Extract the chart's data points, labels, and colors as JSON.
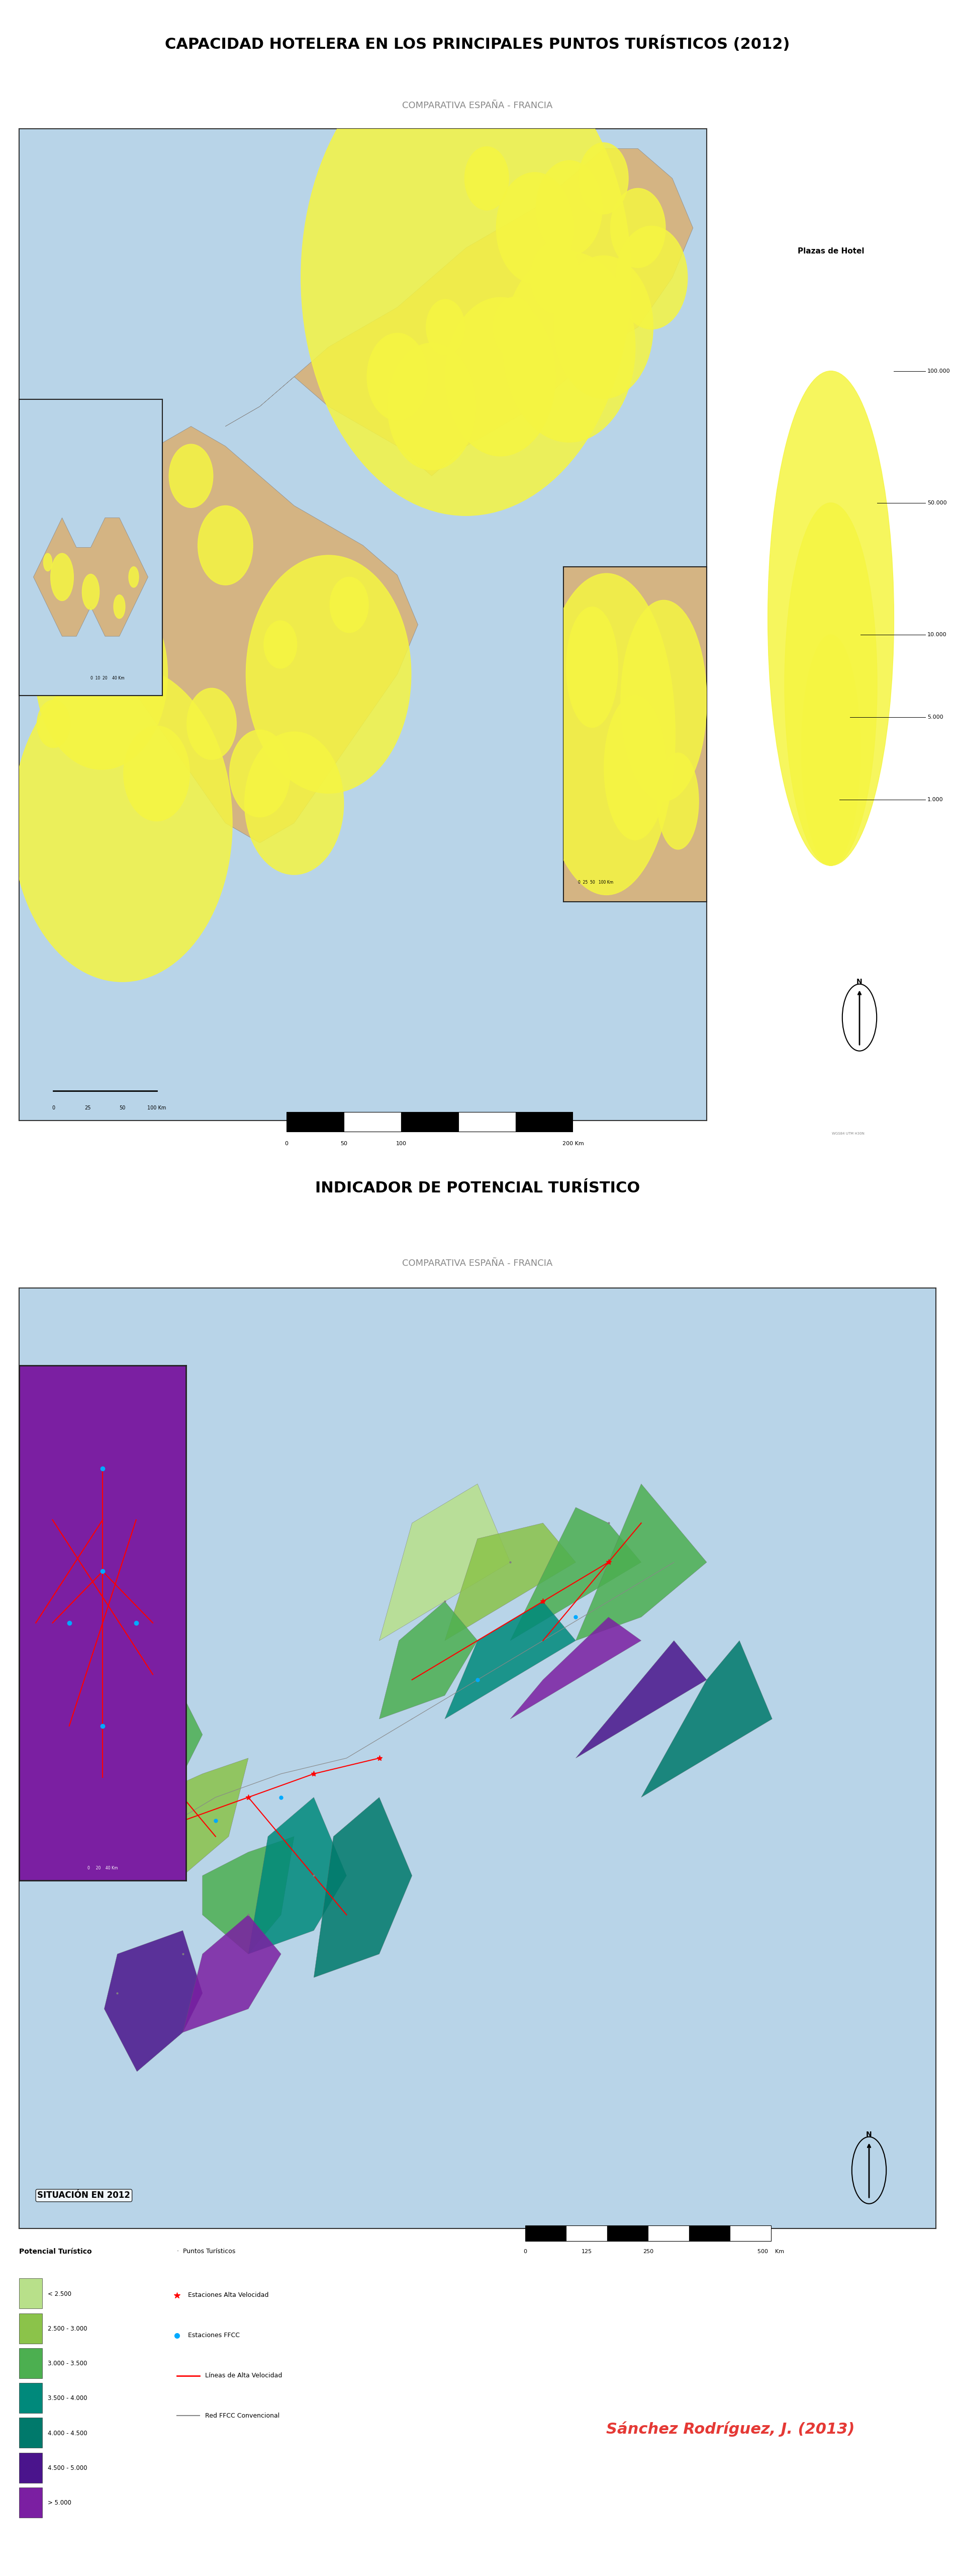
{
  "title1": "CAPACIDAD HOTELERA EN LOS PRINCIPALES PUNTOS TURÍSTICOS (2012)",
  "subtitle1": "COMPARATIVA ESPAÑA - FRANCIA",
  "title2": "INDICADOR DE POTENCIAL TURÍSTICO",
  "subtitle2": "COMPARATIVA ESPAÑA - FRANCIA",
  "situation_label": "SITUACIÓN EN 2012",
  "author": "Sánchez Rodríguez, J. (2013)",
  "bg_color": "#ffffff",
  "map1_bg": "#c8dce8",
  "map1_land": "#d4b483",
  "map2_bg": "#c8dce8",
  "map2_land": "#d4b483",
  "legend_items": [
    {
      "color": "#b8e08a",
      "label": "< 2.500"
    },
    {
      "color": "#8bc34a",
      "label": "2.500 - 3.000"
    },
    {
      "color": "#4caf50",
      "label": "3.000 - 3.500"
    },
    {
      "color": "#00897b",
      "label": "3.500 - 4.000"
    },
    {
      "color": "#00796b",
      "label": "4.000 - 4.500"
    },
    {
      "color": "#4a148c",
      "label": "4.500 - 5.000"
    },
    {
      "color": "#7b1fa2",
      "label": "> 5.000"
    }
  ],
  "legend_title": "Potencial Turístico",
  "legend2_items": [
    {
      "marker": "dot_red",
      "label": "Estaciones Alta Velocidad"
    },
    {
      "marker": "dot_blue",
      "label": "Estaciones FFCC"
    },
    {
      "marker": "line_red",
      "label": "Líneas de Alta Velocidad"
    },
    {
      "marker": "line_gray",
      "label": "Red FFCC Convencional"
    },
    {
      "marker": "dot_gray",
      "label": "Puntos Turísticos"
    }
  ],
  "hotel_legend_title": "Plazas de Hotel",
  "hotel_legend_values": [
    "100.000",
    "50.000",
    "10.000",
    "5.000",
    "1.000"
  ],
  "scale_label_map1": "0    25    50         100 Km",
  "scale_label_map2": "0   50   100          200 Km",
  "scale_label_bottom": "0    125   250              500    Km",
  "north_label": "N",
  "projection": "WGS84 UTM H30N",
  "title1_fontsize": 22,
  "title2_fontsize": 22,
  "subtitle_fontsize": 13,
  "author_fontsize": 18,
  "author_color": "#e53935"
}
